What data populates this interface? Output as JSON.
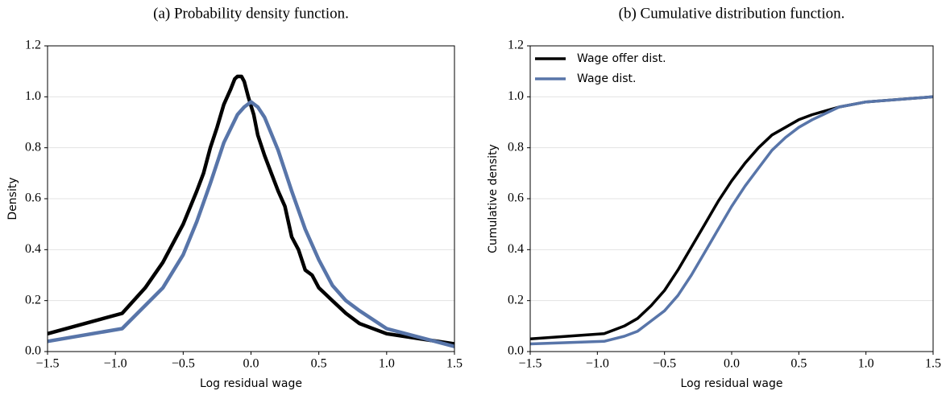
{
  "chart_data": [
    {
      "type": "line",
      "title": "(a) Probability density function.",
      "x_label": "Log residual wage",
      "y_label": "Density",
      "xlim": [
        -1.5,
        1.5
      ],
      "ylim": [
        0,
        1.2
      ],
      "grid": "y",
      "xticks": [
        {
          "value": -1.5,
          "label": "−1.5"
        },
        {
          "value": -1.0,
          "label": "−1.0"
        },
        {
          "value": -0.5,
          "label": "−0.5"
        },
        {
          "value": 0,
          "label": "0.0"
        },
        0.5,
        {
          "value": 1.0,
          "label": "1.0"
        },
        1.5
      ],
      "yticks": [
        {
          "value": 0,
          "label": "0.0"
        },
        0.2,
        0.4,
        0.6,
        0.8,
        {
          "value": 1.0,
          "label": "1.0"
        },
        1.2
      ],
      "series": [
        {
          "color": "#000000",
          "x": [
            -1.5,
            -0.95,
            -0.78,
            -0.65,
            -0.5,
            -0.4,
            -0.35,
            -0.3,
            -0.25,
            -0.2,
            -0.15,
            -0.12,
            -0.1,
            -0.07,
            -0.05,
            -0.02,
            0.02,
            0.05,
            0.1,
            0.15,
            0.2,
            0.25,
            0.3,
            0.35,
            0.4,
            0.45,
            0.5,
            0.6,
            0.7,
            0.8,
            1.0,
            1.5
          ],
          "values": [
            0.07,
            0.15,
            0.25,
            0.35,
            0.5,
            0.63,
            0.7,
            0.8,
            0.88,
            0.97,
            1.03,
            1.07,
            1.08,
            1.08,
            1.06,
            1.0,
            0.93,
            0.85,
            0.77,
            0.7,
            0.63,
            0.57,
            0.45,
            0.4,
            0.32,
            0.3,
            0.25,
            0.2,
            0.15,
            0.11,
            0.07,
            0.03
          ]
        },
        {
          "color": "#5875a9",
          "x": [
            -1.5,
            -0.95,
            -0.8,
            -0.65,
            -0.5,
            -0.4,
            -0.3,
            -0.2,
            -0.1,
            -0.05,
            0,
            0.05,
            0.1,
            0.2,
            0.3,
            0.4,
            0.5,
            0.6,
            0.7,
            0.8,
            1.0,
            1.5
          ],
          "values": [
            0.04,
            0.09,
            0.17,
            0.25,
            0.38,
            0.51,
            0.66,
            0.82,
            0.93,
            0.96,
            0.98,
            0.96,
            0.92,
            0.79,
            0.63,
            0.48,
            0.36,
            0.26,
            0.2,
            0.16,
            0.09,
            0.02
          ]
        }
      ]
    },
    {
      "type": "line",
      "title": "(b) Cumulative distribution function.",
      "x_label": "Log residual wage",
      "y_label": "Cumulative density",
      "xlim": [
        -1.5,
        1.5
      ],
      "ylim": [
        0,
        1.2
      ],
      "grid": "y",
      "legend": "upper left",
      "xticks": [
        {
          "value": -1.5,
          "label": "−1.5"
        },
        {
          "value": -1.0,
          "label": "−1.0"
        },
        {
          "value": -0.5,
          "label": "−0.5"
        },
        {
          "value": 0,
          "label": "0.0"
        },
        0.5,
        {
          "value": 1.0,
          "label": "1.0"
        },
        1.5
      ],
      "yticks": [
        {
          "value": 0,
          "label": "0.0"
        },
        0.2,
        0.4,
        0.6,
        0.8,
        {
          "value": 1.0,
          "label": "1.0"
        },
        1.2
      ],
      "series": [
        {
          "name": "Wage offer dist.",
          "color": "#000000",
          "x": [
            -1.5,
            -0.95,
            -0.8,
            -0.7,
            -0.6,
            -0.5,
            -0.4,
            -0.3,
            -0.2,
            -0.1,
            0,
            0.1,
            0.2,
            0.3,
            0.4,
            0.5,
            0.6,
            0.8,
            1.0,
            1.5
          ],
          "values": [
            0.05,
            0.07,
            0.1,
            0.13,
            0.18,
            0.24,
            0.32,
            0.41,
            0.5,
            0.59,
            0.67,
            0.74,
            0.8,
            0.85,
            0.88,
            0.91,
            0.93,
            0.96,
            0.98,
            1.0
          ]
        },
        {
          "name": "Wage dist.",
          "color": "#5875a9",
          "x": [
            -1.5,
            -0.95,
            -0.8,
            -0.7,
            -0.6,
            -0.5,
            -0.4,
            -0.3,
            -0.2,
            -0.1,
            0,
            0.1,
            0.2,
            0.3,
            0.4,
            0.5,
            0.6,
            0.8,
            1.0,
            1.5
          ],
          "values": [
            0.03,
            0.04,
            0.06,
            0.08,
            0.12,
            0.16,
            0.22,
            0.3,
            0.39,
            0.48,
            0.57,
            0.65,
            0.72,
            0.79,
            0.84,
            0.88,
            0.91,
            0.96,
            0.98,
            1.0
          ]
        }
      ]
    }
  ]
}
